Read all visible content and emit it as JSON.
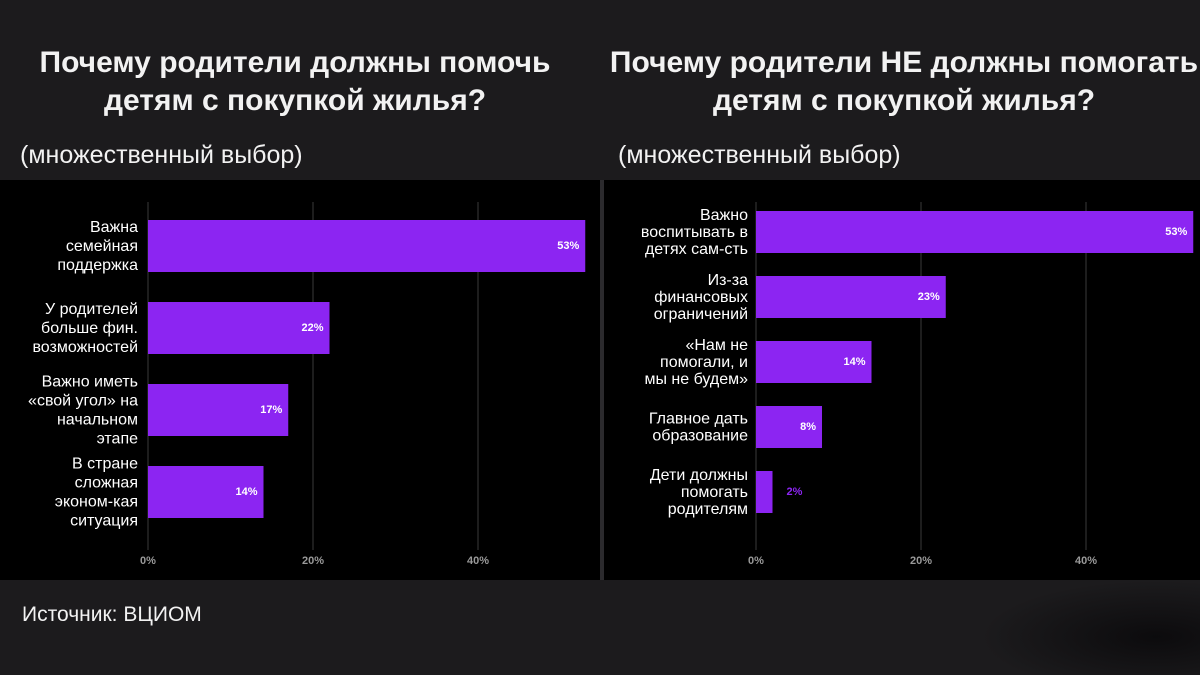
{
  "colors": {
    "bar": "#8c25f2",
    "background": "#1c1b1d",
    "panel": "#000000",
    "grid": "#3a3a3a"
  },
  "source": "Источник: ВЦИОМ",
  "chart_data": [
    {
      "type": "bar",
      "orientation": "horizontal",
      "title": "Почему родители должны помочь детям с покупкой жилья?",
      "subtitle": "(множественный выбор)",
      "categories": [
        "Важна семейная поддержка",
        "У родителей больше фин. возможностей",
        "Важно иметь «свой угол» на начальном этапе",
        "В стране сложная эконом-кая ситуация"
      ],
      "values": [
        53,
        22,
        17,
        14
      ],
      "data_labels": [
        "53%",
        "22%",
        "17%",
        "14%"
      ],
      "xlim": [
        0,
        53
      ],
      "xticks": [
        0,
        20,
        40
      ],
      "xtick_labels": [
        "0%",
        "20%",
        "40%"
      ],
      "grid": true
    },
    {
      "type": "bar",
      "orientation": "horizontal",
      "title": "Почему родители НЕ должны помогать детям с покупкой жилья?",
      "subtitle": "(множественный выбор)",
      "categories": [
        "Важно воспитывать в детях сам-сть",
        "Из-за финансовых ограничений",
        "«Нам не помогали, и мы не будем»",
        "Главное дать образование",
        "Дети должны помогать родителям"
      ],
      "values": [
        53,
        23,
        14,
        8,
        2
      ],
      "data_labels": [
        "53%",
        "23%",
        "14%",
        "8%",
        "2%"
      ],
      "xlim": [
        0,
        53
      ],
      "xticks": [
        0,
        20,
        40
      ],
      "xtick_labels": [
        "0%",
        "20%",
        "40%"
      ],
      "grid": true
    }
  ]
}
